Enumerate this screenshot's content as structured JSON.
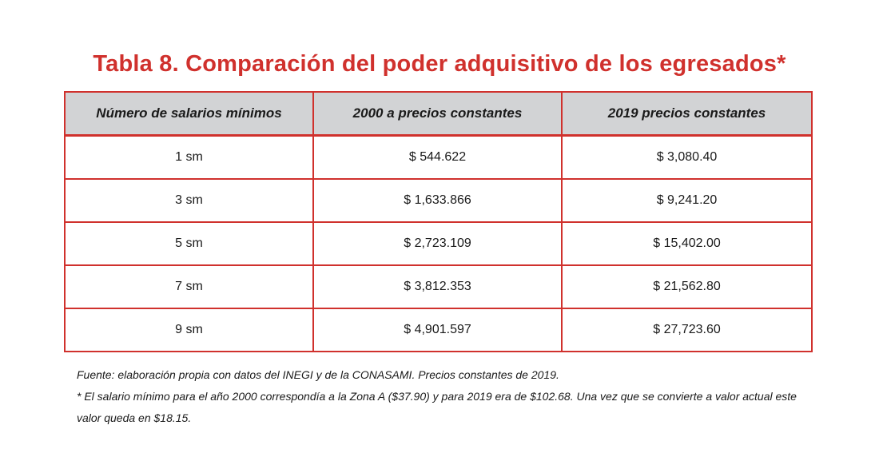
{
  "title": "Tabla 8. Comparación del poder adquisitivo de los egresados*",
  "table": {
    "headers": [
      "Número de salarios mínimos",
      "2000 a precios constantes",
      "2019 precios constantes"
    ],
    "rows": [
      [
        "1 sm",
        "$  544.622",
        "$  3,080.40"
      ],
      [
        "3 sm",
        "$  1,633.866",
        "$  9,241.20"
      ],
      [
        "5 sm",
        "$  2,723.109",
        "$  15,402.00"
      ],
      [
        "7 sm",
        "$  3,812.353",
        "$  21,562.80"
      ],
      [
        "9 sm",
        "$  4,901.597",
        "$  27,723.60"
      ]
    ]
  },
  "notes": {
    "source": "Fuente: elaboración propia con datos del INEGI y de la CONASAMI. Precios constantes de 2019.",
    "footnote": "* El salario mínimo para el año 2000 correspondía a la Zona A ($37.90) y para 2019 era de $102.68. Una vez que se convierte a valor actual este valor queda en $18.15."
  },
  "colors": {
    "accent": "#d0312d",
    "header_bg": "#d2d3d5"
  }
}
